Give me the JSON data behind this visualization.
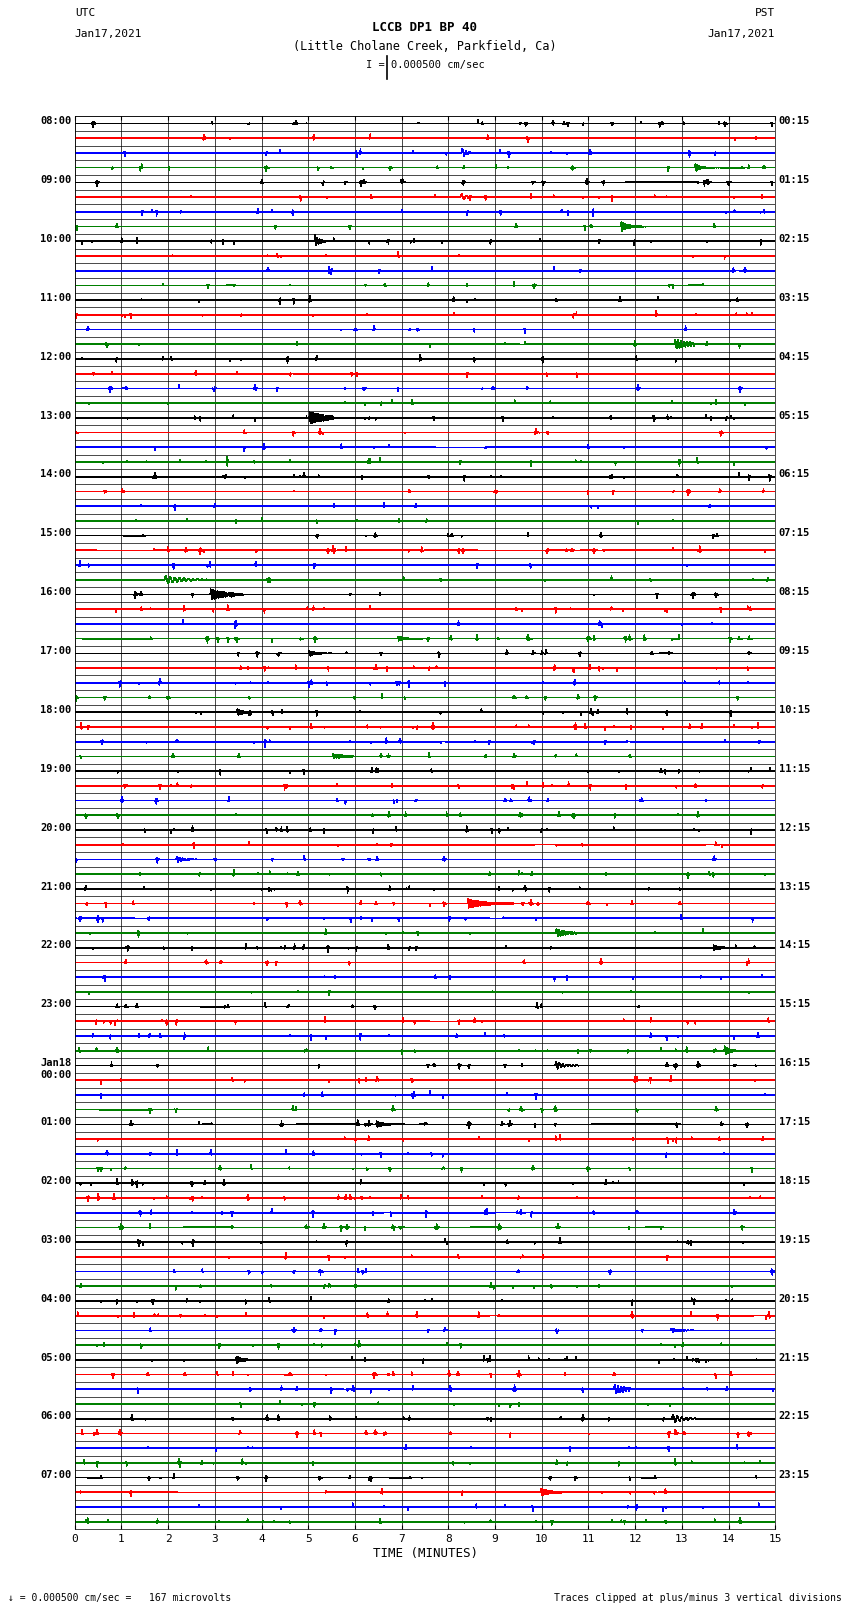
{
  "title_line1": "LCCB DP1 BP 40",
  "title_line2": "(Little Cholane Creek, Parkfield, Ca)",
  "title_line3": "I = 0.000500 cm/sec",
  "utc_label": "UTC",
  "utc_date": "Jan17,2021",
  "pst_label": "PST",
  "pst_date": "Jan17,2021",
  "xlabel": "TIME (MINUTES)",
  "bottom_left": "= 0.000500 cm/sec =   167 microvolts",
  "bottom_right": "Traces clipped at plus/minus 3 vertical divisions",
  "left_times": [
    "08:00",
    "",
    "",
    "",
    "09:00",
    "",
    "",
    "",
    "10:00",
    "",
    "",
    "",
    "11:00",
    "",
    "",
    "",
    "12:00",
    "",
    "",
    "",
    "13:00",
    "",
    "",
    "",
    "14:00",
    "",
    "",
    "",
    "15:00",
    "",
    "",
    "",
    "16:00",
    "",
    "",
    "",
    "17:00",
    "",
    "",
    "",
    "18:00",
    "",
    "",
    "",
    "19:00",
    "",
    "",
    "",
    "20:00",
    "",
    "",
    "",
    "21:00",
    "",
    "",
    "",
    "22:00",
    "",
    "",
    "",
    "23:00",
    "",
    "",
    "",
    "Jan18\n00:00",
    "",
    "",
    "",
    "01:00",
    "",
    "",
    "",
    "02:00",
    "",
    "",
    "",
    "03:00",
    "",
    "",
    "",
    "04:00",
    "",
    "",
    "",
    "05:00",
    "",
    "",
    "",
    "06:00",
    "",
    "",
    "",
    "07:00",
    "",
    "",
    ""
  ],
  "right_times": [
    "00:15",
    "",
    "",
    "",
    "01:15",
    "",
    "",
    "",
    "02:15",
    "",
    "",
    "",
    "03:15",
    "",
    "",
    "",
    "04:15",
    "",
    "",
    "",
    "05:15",
    "",
    "",
    "",
    "06:15",
    "",
    "",
    "",
    "07:15",
    "",
    "",
    "",
    "08:15",
    "",
    "",
    "",
    "09:15",
    "",
    "",
    "",
    "10:15",
    "",
    "",
    "",
    "11:15",
    "",
    "",
    "",
    "12:15",
    "",
    "",
    "",
    "13:15",
    "",
    "",
    "",
    "14:15",
    "",
    "",
    "",
    "15:15",
    "",
    "",
    "",
    "16:15",
    "",
    "",
    "",
    "17:15",
    "",
    "",
    "",
    "18:15",
    "",
    "",
    "",
    "19:15",
    "",
    "",
    "",
    "20:15",
    "",
    "",
    "",
    "21:15",
    "",
    "",
    "",
    "22:15",
    "",
    "",
    "",
    "23:15",
    "",
    "",
    ""
  ],
  "n_rows": 96,
  "x_min": 0,
  "x_max": 15,
  "x_ticks": [
    0,
    1,
    2,
    3,
    4,
    5,
    6,
    7,
    8,
    9,
    10,
    11,
    12,
    13,
    14,
    15
  ],
  "background_color": "#ffffff",
  "trace_colors": [
    "#000000",
    "#ff0000",
    "#0000ff",
    "#008000"
  ],
  "color_cycle": [
    0,
    1,
    2,
    3
  ]
}
